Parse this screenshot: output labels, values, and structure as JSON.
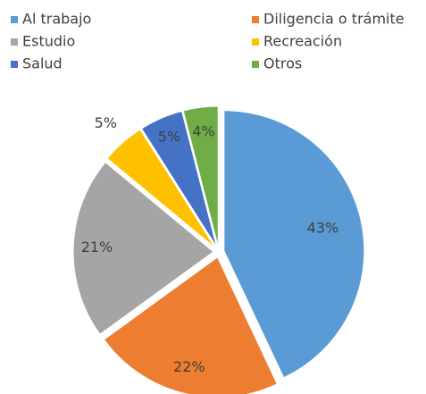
{
  "chart_data": {
    "type": "pie",
    "categories": [
      "Al trabajo",
      "Diligencia o trámite",
      "Estudio",
      "Recreación",
      "Salud",
      "Otros"
    ],
    "values": [
      43,
      22,
      21,
      5,
      5,
      4
    ],
    "value_labels": [
      "43%",
      "22%",
      "21%",
      "5%",
      "5%",
      "4%"
    ],
    "colors": [
      "#5b9bd5",
      "#ed7d31",
      "#a5a5a5",
      "#ffc000",
      "#4472c4",
      "#70ad47"
    ],
    "legend": "top"
  }
}
